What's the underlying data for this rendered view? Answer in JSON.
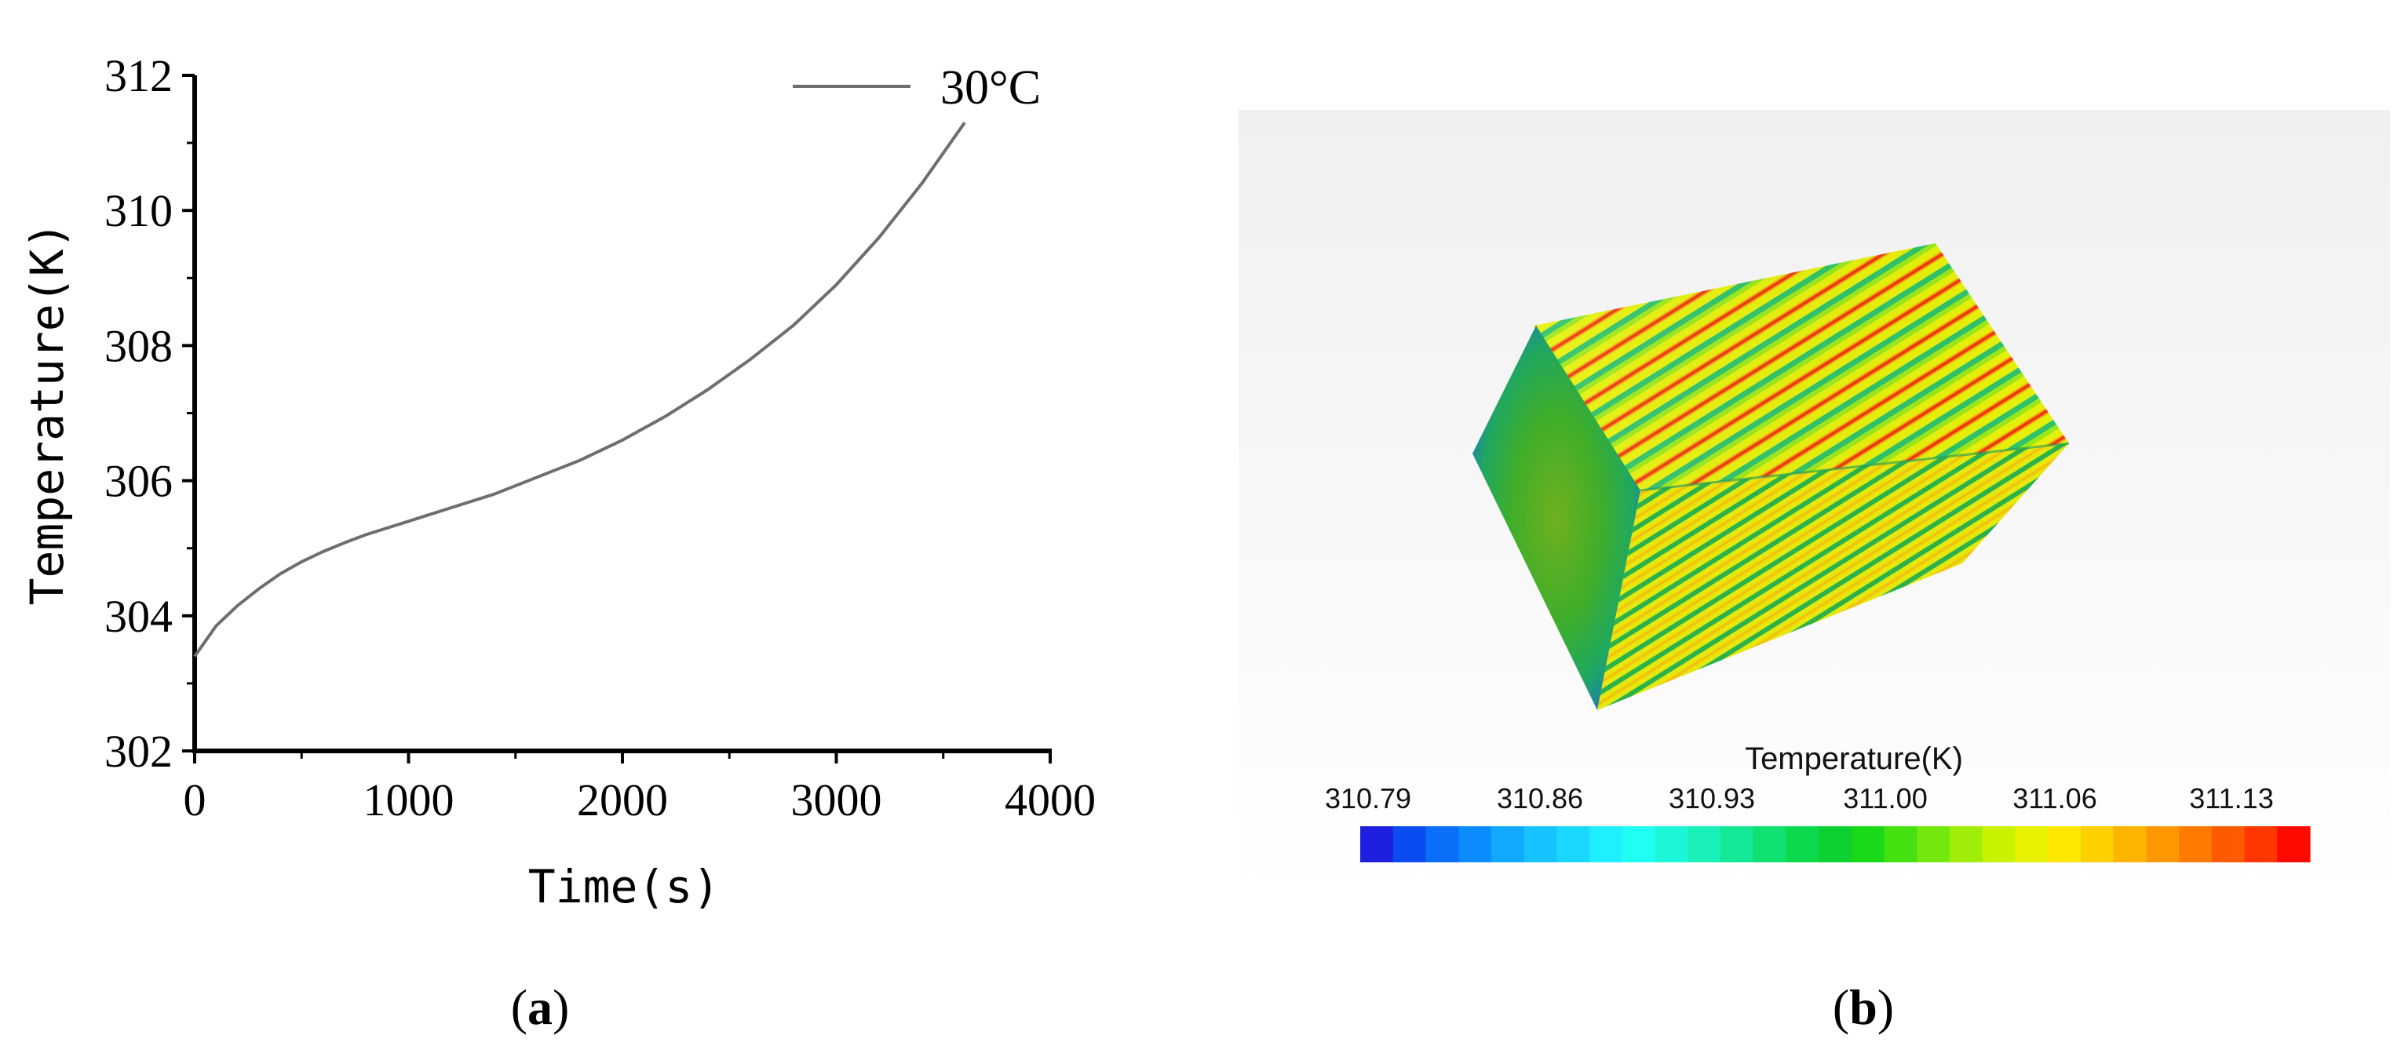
{
  "chart_data": [
    {
      "type": "line",
      "panel_label": "a",
      "xlabel": "Time(s)",
      "ylabel": "Temperature(K)",
      "xlim": [
        0,
        4000
      ],
      "ylim": [
        302,
        312
      ],
      "xticks": [
        "0",
        "1000",
        "2000",
        "3000",
        "4000"
      ],
      "yticks": [
        "302",
        "304",
        "306",
        "308",
        "310",
        "312"
      ],
      "grid": false,
      "legend": "top-right",
      "series": [
        {
          "name": "30°C",
          "color": "#6e6e6e",
          "x": [
            0,
            100,
            200,
            300,
            400,
            500,
            600,
            700,
            800,
            900,
            1000,
            1200,
            1400,
            1600,
            1800,
            2000,
            2200,
            2400,
            2600,
            2800,
            3000,
            3200,
            3400,
            3600
          ],
          "y": [
            303.4,
            303.85,
            304.15,
            304.4,
            304.62,
            304.8,
            304.95,
            305.08,
            305.2,
            305.3,
            305.4,
            305.6,
            305.8,
            306.05,
            306.3,
            306.6,
            306.95,
            307.35,
            307.8,
            308.3,
            308.9,
            309.6,
            310.4,
            311.3
          ]
        }
      ]
    },
    {
      "type": "heatmap",
      "panel_label": "b",
      "title": "Temperature(K)",
      "colorbar_ticks": [
        "310.79",
        "310.86",
        "310.93",
        "311.00",
        "311.06",
        "311.13"
      ],
      "range": [
        310.79,
        311.13
      ],
      "colors": [
        "#1f1fe0",
        "#0a4cf0",
        "#0a6ef8",
        "#0a8cff",
        "#11a8ff",
        "#16c2ff",
        "#1ad8ff",
        "#1ef0ff",
        "#1ffff2",
        "#1bf7d6",
        "#18f0b8",
        "#14e896",
        "#10e070",
        "#0cd84c",
        "#0ad030",
        "#18d818",
        "#44e010",
        "#74e80c",
        "#a0ee08",
        "#c8f200",
        "#e8f200",
        "#ffe800",
        "#ffd000",
        "#ffb400",
        "#ff9800",
        "#ff7a00",
        "#ff5a00",
        "#ff3600",
        "#ff0a00"
      ]
    }
  ]
}
